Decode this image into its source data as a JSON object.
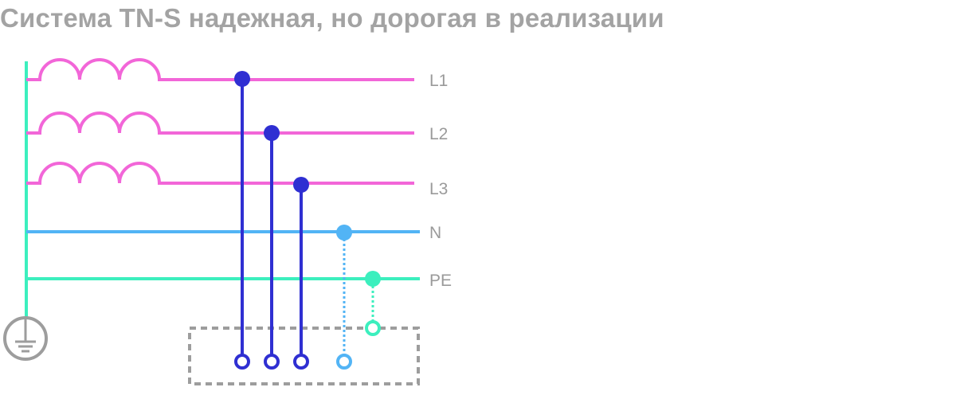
{
  "title": "Система TN-S надежная, но дорогая в реализации",
  "wires": {
    "l1": "L1",
    "l2": "L2",
    "l3": "L3",
    "n": "N",
    "pe": "PE"
  },
  "colors": {
    "phase": "#f266d8",
    "neutral": "#52b4f5",
    "protective_earth": "#3cefbe",
    "consumer_lines": "#2f2fd2",
    "enclosure": "#9d9d9d",
    "ground_symbol": "#9d9d9d",
    "title": "#a3a3a3",
    "labels": "#9a9a9a"
  },
  "icons": {
    "ground": "ground-icon",
    "transformer_windings": "winding-coil-icon"
  }
}
